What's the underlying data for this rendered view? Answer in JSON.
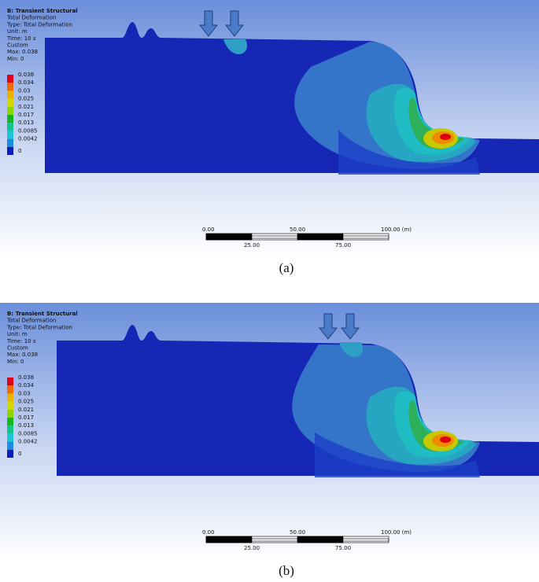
{
  "panels": [
    {
      "header": [
        "B: Transient Structural",
        "Total Deformation",
        "Type: Total Deformation",
        "Unit: m",
        "Time: 10 s",
        "Custom",
        "Max: 0.038",
        "Min: 0"
      ],
      "legend": [
        "0.038",
        "0.034",
        "0.03",
        "0.025",
        "0.021",
        "0.017",
        "0.013",
        "0.0085",
        "0.0042",
        "0"
      ],
      "scale_top": [
        "0.00",
        "50.00",
        "100.00 (m)"
      ],
      "scale_bottom": [
        "25.00",
        "75.00"
      ],
      "caption": "(a)"
    },
    {
      "header": [
        "B: Transient Structural",
        "Total Deformation",
        "Type: Total Deformation",
        "Unit: m",
        "Time: 10 s",
        "Custom",
        "Max: 0.038",
        "Min: 0"
      ],
      "legend": [
        "0.038",
        "0.034",
        "0.03",
        "0.025",
        "0.021",
        "0.017",
        "0.013",
        "0.0085",
        "0.0042",
        "0"
      ],
      "scale_top": [
        "0.00",
        "50.00",
        "100.00 (m)"
      ],
      "scale_bottom": [
        "25.00",
        "75.00"
      ],
      "caption": "(b)"
    }
  ]
}
